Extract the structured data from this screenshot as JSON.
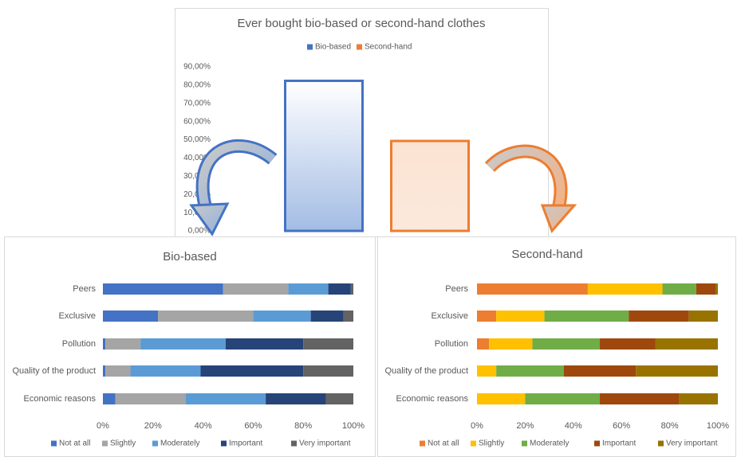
{
  "chart_data": [
    {
      "type": "bar",
      "title": "Ever bought bio-based or second-hand clothes",
      "series": [
        {
          "name": "Bio-based",
          "color": "#4472c4",
          "values": [
            83
          ]
        },
        {
          "name": "Second-hand",
          "color": "#ed7d31",
          "values": [
            50
          ]
        }
      ],
      "ylim": [
        0,
        90
      ],
      "yticks": [
        {
          "value": 0,
          "label": "0,00%"
        },
        {
          "value": 10,
          "label": "10,00%"
        },
        {
          "value": 20,
          "label": "20,00%"
        },
        {
          "value": 30,
          "label": "30,00%"
        },
        {
          "value": 40,
          "label": "40,00%"
        },
        {
          "value": 50,
          "label": "50,00%"
        },
        {
          "value": 60,
          "label": "60,00%"
        },
        {
          "value": 70,
          "label": "70,00%"
        },
        {
          "value": 80,
          "label": "80,00%"
        },
        {
          "value": 90,
          "label": "90,00%"
        }
      ],
      "grid": false
    },
    {
      "type": "bar",
      "orientation": "horizontal",
      "stacked": true,
      "title": "Bio-based",
      "categories": [
        "Peers",
        "Exclusive",
        "Pollution",
        "Quality of the product",
        "Economic reasons"
      ],
      "series": [
        {
          "name": "Not at all",
          "color": "#4472c4",
          "values": [
            48,
            22,
            1,
            1,
            5
          ]
        },
        {
          "name": "Slightly",
          "color": "#a5a5a5",
          "values": [
            26,
            38,
            14,
            10,
            28
          ]
        },
        {
          "name": "Moderately",
          "color": "#5b9bd5",
          "values": [
            16,
            23,
            34,
            28,
            32
          ]
        },
        {
          "name": "Important",
          "color": "#264478",
          "values": [
            9,
            13,
            31,
            41,
            24
          ]
        },
        {
          "name": "Very important",
          "color": "#636363",
          "values": [
            1,
            4,
            20,
            20,
            11
          ]
        }
      ],
      "xlim": [
        0,
        100
      ],
      "xticks": [
        {
          "value": 0,
          "label": "0%"
        },
        {
          "value": 20,
          "label": "20%"
        },
        {
          "value": 40,
          "label": "40%"
        },
        {
          "value": 60,
          "label": "60%"
        },
        {
          "value": 80,
          "label": "80%"
        },
        {
          "value": 100,
          "label": "100%"
        }
      ],
      "grid": false
    },
    {
      "type": "bar",
      "orientation": "horizontal",
      "stacked": true,
      "title": "Second-hand",
      "categories": [
        "Peers",
        "Exclusive",
        "Pollution",
        "Quality of the product",
        "Economic reasons"
      ],
      "series": [
        {
          "name": "Not at all",
          "color": "#ed7d31",
          "values": [
            46,
            8,
            5,
            0,
            0
          ]
        },
        {
          "name": "Slightly",
          "color": "#ffc000",
          "values": [
            31,
            20,
            18,
            8,
            20
          ]
        },
        {
          "name": "Moderately",
          "color": "#70ad47",
          "values": [
            14,
            35,
            28,
            28,
            31
          ]
        },
        {
          "name": "Important",
          "color": "#9e480e",
          "values": [
            8,
            25,
            23,
            30,
            33
          ]
        },
        {
          "name": "Very important",
          "color": "#997300",
          "values": [
            1,
            12,
            26,
            34,
            16
          ]
        }
      ],
      "xlim": [
        0,
        100
      ],
      "xticks": [
        {
          "value": 0,
          "label": "0%"
        },
        {
          "value": 20,
          "label": "20%"
        },
        {
          "value": 40,
          "label": "40%"
        },
        {
          "value": 60,
          "label": "60%"
        },
        {
          "value": 80,
          "label": "80%"
        },
        {
          "value": 100,
          "label": "100%"
        }
      ],
      "grid": false
    }
  ]
}
